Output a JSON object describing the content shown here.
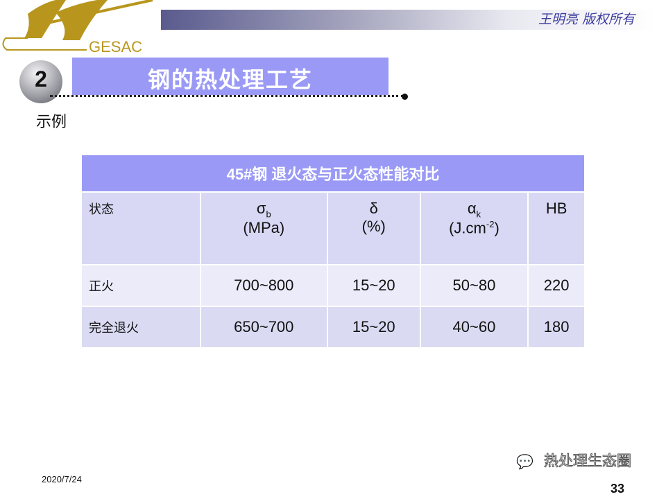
{
  "logo": {
    "text": "GESAC",
    "color": "#b8961e"
  },
  "header": {
    "copyright": "王明亮 版权所有",
    "section_number": "2",
    "title": "钢的热处理工艺",
    "subtitle": "示例"
  },
  "table": {
    "caption": "45#钢  退火态与正火态性能对比",
    "headers": [
      {
        "main": "状态"
      },
      {
        "main": "σ",
        "sub": "b",
        "unit": "(MPa)"
      },
      {
        "main": "δ",
        "unit": "(%)"
      },
      {
        "main": "α",
        "sub": "k",
        "unit_pre": "(J.cm",
        "sup": "-2",
        "unit_post": ")"
      },
      {
        "main": "HB"
      }
    ],
    "rows": [
      [
        "正火",
        "700~800",
        "15~20",
        "50~80",
        "220"
      ],
      [
        "完全退火",
        "650~700",
        "15~20",
        "40~60",
        "180"
      ]
    ]
  },
  "footer": {
    "date": "2020/7/24",
    "page": "33",
    "watermark": "热处理生态圈",
    "watermark_icon": "wechat-icon"
  },
  "colors": {
    "accent": "#9a9af6",
    "row_a": "#d8d8f4",
    "row_b": "#ebebfa"
  }
}
